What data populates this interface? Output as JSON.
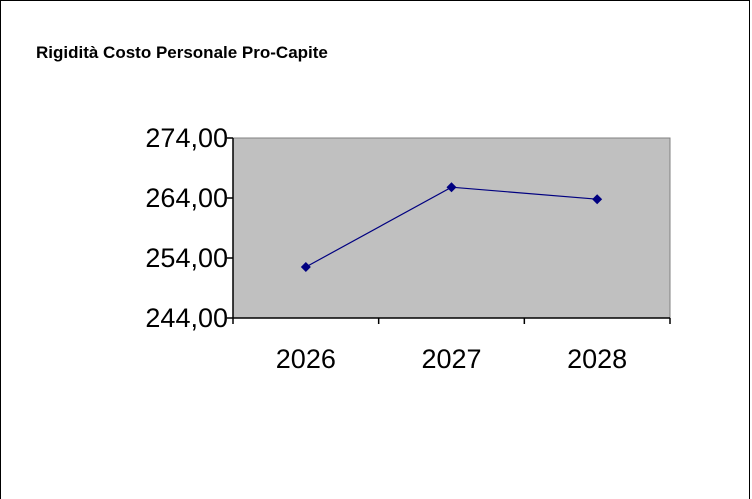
{
  "chart_data": {
    "type": "line",
    "title": "Rigidità Costo Personale Pro-Capite",
    "categories": [
      "2026",
      "2027",
      "2028"
    ],
    "series": [
      {
        "values": [
          252.5,
          265.8,
          263.8
        ],
        "color": "#000080"
      }
    ],
    "ylim": [
      244,
      274
    ],
    "y_ticks": [
      274,
      264,
      254,
      244
    ],
    "y_tick_labels": [
      "274,00",
      "264,00",
      "254,00",
      "244,00"
    ],
    "xlabel": "",
    "ylabel": "",
    "plot_background": "#c0c0c0",
    "legend": "none",
    "grid": false
  }
}
